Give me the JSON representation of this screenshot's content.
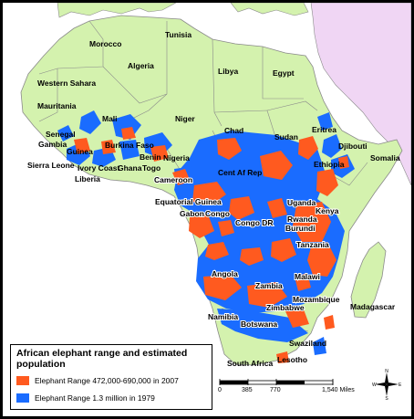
{
  "map": {
    "countries": [
      {
        "name": "Tunisia"
      },
      {
        "name": "Morocco"
      },
      {
        "name": "Algeria"
      },
      {
        "name": "Libya"
      },
      {
        "name": "Egypt"
      },
      {
        "name": "Western Sahara"
      },
      {
        "name": "Mauritania"
      },
      {
        "name": "Mali"
      },
      {
        "name": "Niger"
      },
      {
        "name": "Chad"
      },
      {
        "name": "Sudan"
      },
      {
        "name": "Eritrea"
      },
      {
        "name": "Senegal"
      },
      {
        "name": "Gambia"
      },
      {
        "name": "Guinea"
      },
      {
        "name": "Burkina Faso"
      },
      {
        "name": "Benin"
      },
      {
        "name": "Nigeria"
      },
      {
        "name": "Djibouti"
      },
      {
        "name": "Sierra Leone"
      },
      {
        "name": "Ivory Coast"
      },
      {
        "name": "Ghana"
      },
      {
        "name": "Togo"
      },
      {
        "name": "Ethiopia"
      },
      {
        "name": "Somalia"
      },
      {
        "name": "Liberia"
      },
      {
        "name": "Cent Af Rep"
      },
      {
        "name": "Cameroon"
      },
      {
        "name": "Equatorial Guinea"
      },
      {
        "name": "Uganda"
      },
      {
        "name": "Kenya"
      },
      {
        "name": "Gabon"
      },
      {
        "name": "Congo"
      },
      {
        "name": "Congo DR"
      },
      {
        "name": "Rwanda"
      },
      {
        "name": "Burundi"
      },
      {
        "name": "Tanzania"
      },
      {
        "name": "Angola"
      },
      {
        "name": "Malawi"
      },
      {
        "name": "Zambia"
      },
      {
        "name": "Mozambique"
      },
      {
        "name": "Madagascar"
      },
      {
        "name": "Zimbabwe"
      },
      {
        "name": "Namibia"
      },
      {
        "name": "Botswana"
      },
      {
        "name": "Swaziland"
      },
      {
        "name": "South Africa"
      },
      {
        "name": "Lesotho"
      }
    ],
    "colors": {
      "sea": "#ffffff",
      "land": "#d4f2ae",
      "outside_land": "#f0d6f4",
      "range_2007": "#ff5a1f",
      "range_1979": "#1a6cff",
      "border": "#8a8a8a"
    }
  },
  "legend": {
    "title": "African elephant range and estimated population",
    "items": [
      {
        "label": "Elephant Range 472,000-690,000 in 2007",
        "color": "#ff5a1f"
      },
      {
        "label": "Elephant Range 1.3 million in 1979",
        "color": "#1a6cff"
      }
    ]
  },
  "scale_bar": {
    "ticks": [
      "0",
      "385",
      "770",
      "1,540 Miles"
    ]
  },
  "compass": {
    "n": "N",
    "s": "S",
    "e": "E",
    "w": "W"
  }
}
